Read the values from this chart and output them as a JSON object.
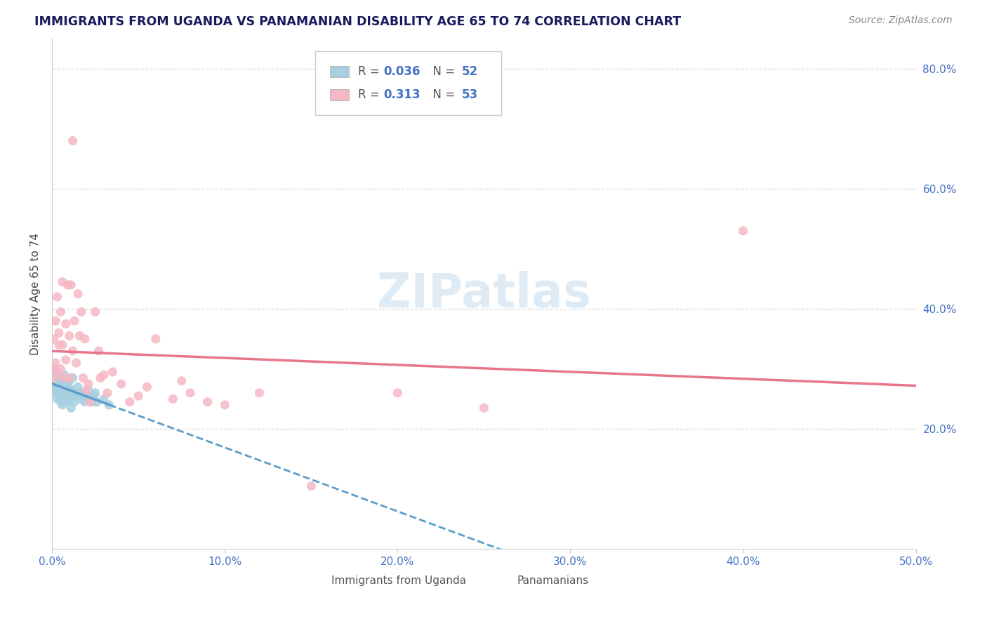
{
  "title": "IMMIGRANTS FROM UGANDA VS PANAMANIAN DISABILITY AGE 65 TO 74 CORRELATION CHART",
  "source": "Source: ZipAtlas.com",
  "ylabel": "Disability Age 65 to 74",
  "xlim": [
    0.0,
    0.5
  ],
  "ylim": [
    0.0,
    0.85
  ],
  "ytick_labels": [
    "20.0%",
    "40.0%",
    "60.0%",
    "80.0%"
  ],
  "ytick_values": [
    0.2,
    0.4,
    0.6,
    0.8
  ],
  "xtick_values": [
    0.0,
    0.1,
    0.2,
    0.3,
    0.4,
    0.5
  ],
  "watermark": "ZIPatlas",
  "blue_color": "#a8cfe0",
  "pink_color": "#f5b8c4",
  "blue_line_color": "#5b9ec9",
  "pink_line_color": "#e8768a",
  "grid_color": "#d8d8d8",
  "title_color": "#1a1a5e",
  "tick_label_color": "#4472c4",
  "source_color": "#888888",
  "uganda_x": [
    0.0,
    0.0,
    0.001,
    0.001,
    0.001,
    0.002,
    0.002,
    0.002,
    0.003,
    0.003,
    0.003,
    0.003,
    0.004,
    0.004,
    0.005,
    0.005,
    0.005,
    0.006,
    0.006,
    0.006,
    0.007,
    0.007,
    0.007,
    0.008,
    0.008,
    0.008,
    0.009,
    0.009,
    0.01,
    0.01,
    0.01,
    0.011,
    0.012,
    0.012,
    0.013,
    0.013,
    0.014,
    0.015,
    0.015,
    0.016,
    0.017,
    0.018,
    0.019,
    0.02,
    0.021,
    0.022,
    0.023,
    0.024,
    0.025,
    0.026,
    0.03,
    0.033
  ],
  "uganda_y": [
    0.285,
    0.295,
    0.275,
    0.26,
    0.3,
    0.265,
    0.29,
    0.275,
    0.25,
    0.27,
    0.28,
    0.295,
    0.255,
    0.275,
    0.245,
    0.265,
    0.28,
    0.26,
    0.285,
    0.24,
    0.255,
    0.275,
    0.29,
    0.245,
    0.265,
    0.28,
    0.255,
    0.275,
    0.25,
    0.265,
    0.28,
    0.235,
    0.265,
    0.285,
    0.245,
    0.26,
    0.255,
    0.255,
    0.27,
    0.26,
    0.25,
    0.26,
    0.245,
    0.255,
    0.265,
    0.255,
    0.245,
    0.255,
    0.26,
    0.245,
    0.25,
    0.24
  ],
  "panama_x": [
    0.0,
    0.001,
    0.001,
    0.002,
    0.002,
    0.003,
    0.003,
    0.004,
    0.004,
    0.005,
    0.005,
    0.006,
    0.006,
    0.007,
    0.008,
    0.008,
    0.009,
    0.01,
    0.01,
    0.011,
    0.012,
    0.012,
    0.013,
    0.014,
    0.015,
    0.016,
    0.017,
    0.018,
    0.019,
    0.02,
    0.021,
    0.022,
    0.025,
    0.027,
    0.028,
    0.03,
    0.032,
    0.035,
    0.04,
    0.045,
    0.05,
    0.055,
    0.06,
    0.07,
    0.075,
    0.08,
    0.09,
    0.1,
    0.12,
    0.15,
    0.2,
    0.25,
    0.4
  ],
  "panama_y": [
    0.28,
    0.3,
    0.35,
    0.31,
    0.38,
    0.29,
    0.42,
    0.34,
    0.36,
    0.3,
    0.395,
    0.34,
    0.445,
    0.285,
    0.375,
    0.315,
    0.44,
    0.355,
    0.285,
    0.44,
    0.68,
    0.33,
    0.38,
    0.31,
    0.425,
    0.355,
    0.395,
    0.285,
    0.35,
    0.265,
    0.275,
    0.245,
    0.395,
    0.33,
    0.285,
    0.29,
    0.26,
    0.295,
    0.275,
    0.245,
    0.255,
    0.27,
    0.35,
    0.25,
    0.28,
    0.26,
    0.245,
    0.24,
    0.26,
    0.105,
    0.26,
    0.235,
    0.53
  ],
  "uganda_line_x_start": 0.0,
  "uganda_line_x_end": 0.5,
  "panama_line_x_start": 0.0,
  "panama_line_x_end": 0.5
}
